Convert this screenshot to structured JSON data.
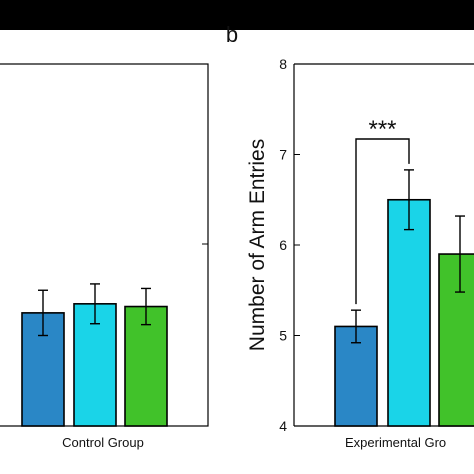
{
  "panel_label": "b",
  "chart_data": [
    {
      "type": "bar",
      "category_label": "Control Group",
      "categories": [
        "",
        "",
        ""
      ],
      "values": [
        5.25,
        5.35,
        5.32
      ],
      "error": [
        0.25,
        0.22,
        0.2
      ],
      "colors": [
        "#2a87c6",
        "#1ad4e8",
        "#41c22a"
      ],
      "ylabel": "",
      "ylim": [
        4,
        8
      ],
      "yticks": [],
      "grid": false
    },
    {
      "type": "bar",
      "category_label": "Experimental Gro",
      "categories": [
        "",
        "",
        ""
      ],
      "values": [
        5.1,
        6.5,
        5.9
      ],
      "error": [
        0.18,
        0.33,
        0.42
      ],
      "colors": [
        "#2a87c6",
        "#1ad4e8",
        "#41c22a"
      ],
      "ylabel": "Number of Arm Entries",
      "ylim": [
        4,
        8
      ],
      "yticks": [
        "4",
        "5",
        "6",
        "7",
        "8"
      ],
      "grid": false,
      "annotation": {
        "text": "***",
        "from_bar": 0,
        "to_bar": 1
      }
    }
  ],
  "colors": {
    "background": "#ffffff",
    "banner": "#000000",
    "axis": "#000000"
  }
}
